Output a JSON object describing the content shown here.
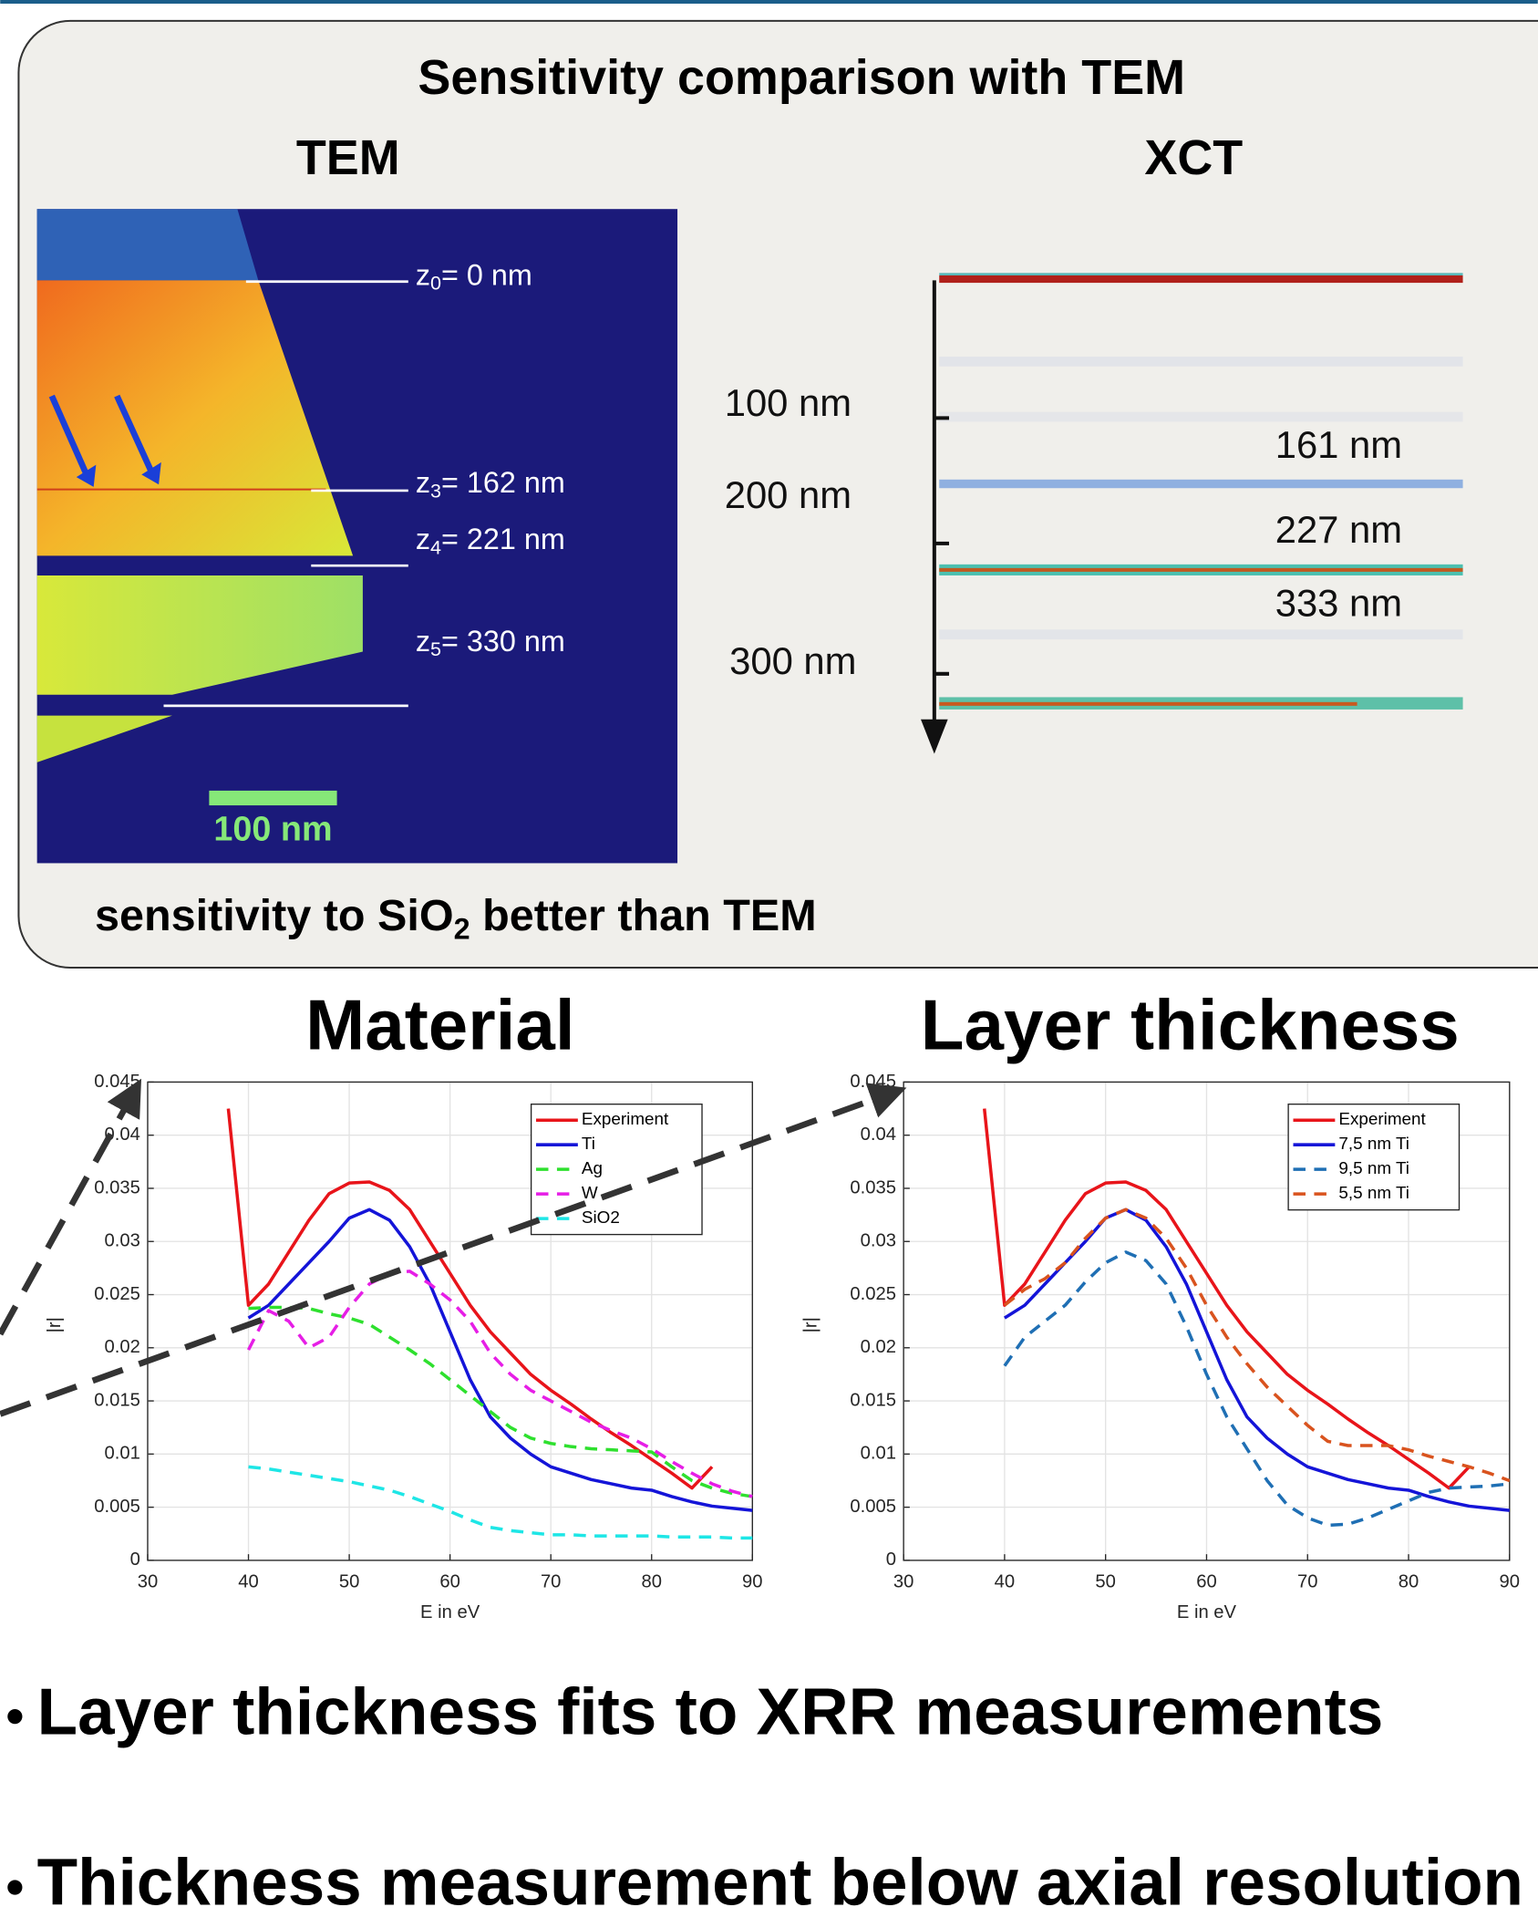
{
  "panel": {
    "title": "Sensitivity comparison with TEM",
    "tem_title": "TEM",
    "xct_title": "XCT",
    "tem_labels": [
      {
        "var": "z",
        "sub": "0",
        "rest": "= 0 nm"
      },
      {
        "var": "z",
        "sub": "3",
        "rest": "= 162 nm"
      },
      {
        "var": "z",
        "sub": "4",
        "rest": "= 221 nm"
      },
      {
        "var": "z",
        "sub": "5",
        "rest": "= 330 nm"
      }
    ],
    "scale_bar": "100 nm",
    "xct_depth_labels": [
      "100 nm",
      "200 nm",
      "300 nm"
    ],
    "xct_layer_labels": [
      "161 nm",
      "227 nm",
      "333 nm"
    ],
    "note": {
      "before": "sensitivity to SiO",
      "sub": "2",
      "after": " better than TEM"
    }
  },
  "chart_data": [
    {
      "type": "line",
      "title": "Material",
      "x_label": "E in eV",
      "y_label": "|r|",
      "xlim": [
        30,
        90
      ],
      "ylim": [
        0,
        0.045
      ],
      "xticks": [
        30,
        40,
        50,
        60,
        70,
        80,
        90
      ],
      "yticks": [
        0,
        0.005,
        0.01,
        0.015,
        0.02,
        0.025,
        0.03,
        0.035,
        0.04,
        0.045
      ],
      "grid": true,
      "legend": "upper right",
      "x": [
        38,
        40,
        42,
        44,
        46,
        48,
        50,
        52,
        54,
        56,
        58,
        60,
        62,
        64,
        66,
        68,
        70,
        72,
        74,
        76,
        78,
        80,
        82,
        84,
        86,
        88,
        90
      ],
      "series": [
        {
          "name": "Experiment",
          "color": "#e8141a",
          "style": "solid",
          "values": [
            0.0425,
            0.024,
            0.026,
            0.029,
            0.032,
            0.0345,
            0.0355,
            0.0356,
            0.0348,
            0.033,
            0.03,
            0.027,
            0.024,
            0.0215,
            0.0195,
            0.0175,
            0.016,
            0.0147,
            0.0133,
            0.012,
            0.0108,
            0.0095,
            0.0082,
            0.0068,
            0.0088,
            null,
            null
          ]
        },
        {
          "name": "Ti",
          "color": "#1414d8",
          "style": "solid",
          "values": [
            null,
            0.0228,
            0.024,
            0.026,
            0.028,
            0.03,
            0.0322,
            0.033,
            0.032,
            0.0295,
            0.026,
            0.0215,
            0.017,
            0.0135,
            0.0115,
            0.01,
            0.0088,
            0.0082,
            0.0076,
            0.0072,
            0.0068,
            0.0066,
            0.006,
            0.0055,
            0.0051,
            0.0049,
            0.0047
          ]
        },
        {
          "name": "Ag",
          "color": "#2ee02e",
          "style": "dashed",
          "values": [
            null,
            0.0237,
            0.0238,
            0.0238,
            0.0237,
            0.0232,
            0.0228,
            0.0222,
            0.021,
            0.0198,
            0.0185,
            0.017,
            0.0155,
            0.014,
            0.0125,
            0.0115,
            0.011,
            0.0107,
            0.0105,
            0.0104,
            0.0103,
            0.0102,
            0.0088,
            0.0075,
            0.0068,
            0.0063,
            0.006
          ]
        },
        {
          "name": "W",
          "color": "#e61ee6",
          "style": "dashed",
          "values": [
            null,
            0.0198,
            0.0235,
            0.0225,
            0.02,
            0.021,
            0.0238,
            0.026,
            0.027,
            0.0272,
            0.026,
            0.0245,
            0.0225,
            0.0195,
            0.0175,
            0.016,
            0.015,
            0.014,
            0.013,
            0.0122,
            0.0115,
            0.0105,
            0.0093,
            0.0082,
            0.0072,
            0.0065,
            0.006
          ]
        },
        {
          "name": "SiO2",
          "color": "#1ee6e6",
          "style": "dashed",
          "values": [
            null,
            0.0088,
            0.0086,
            0.0083,
            0.008,
            0.0077,
            0.0074,
            0.007,
            0.0066,
            0.006,
            0.0053,
            0.0046,
            0.0038,
            0.0031,
            0.0028,
            0.0026,
            0.0024,
            0.0024,
            0.0023,
            0.0023,
            0.0023,
            0.0023,
            0.0022,
            0.0022,
            0.0022,
            0.0021,
            0.0021
          ]
        }
      ]
    },
    {
      "type": "line",
      "title": "Layer thickness",
      "x_label": "E in eV",
      "y_label": "|r|",
      "xlim": [
        30,
        90
      ],
      "ylim": [
        0,
        0.045
      ],
      "xticks": [
        30,
        40,
        50,
        60,
        70,
        80,
        90
      ],
      "yticks": [
        0,
        0.005,
        0.01,
        0.015,
        0.02,
        0.025,
        0.03,
        0.035,
        0.04,
        0.045
      ],
      "grid": true,
      "legend": "upper right",
      "x": [
        38,
        40,
        42,
        44,
        46,
        48,
        50,
        52,
        54,
        56,
        58,
        60,
        62,
        64,
        66,
        68,
        70,
        72,
        74,
        76,
        78,
        80,
        82,
        84,
        86,
        88,
        90
      ],
      "series": [
        {
          "name": "Experiment",
          "color": "#e8141a",
          "style": "solid",
          "values": [
            0.0425,
            0.024,
            0.026,
            0.029,
            0.032,
            0.0345,
            0.0355,
            0.0356,
            0.0348,
            0.033,
            0.03,
            0.027,
            0.024,
            0.0215,
            0.0195,
            0.0175,
            0.016,
            0.0147,
            0.0133,
            0.012,
            0.0108,
            0.0095,
            0.0082,
            0.0068,
            0.0088,
            null,
            null
          ]
        },
        {
          "name": "7,5 nm Ti",
          "color": "#1414d8",
          "style": "solid",
          "values": [
            null,
            0.0228,
            0.024,
            0.026,
            0.028,
            0.03,
            0.0322,
            0.033,
            0.032,
            0.0295,
            0.026,
            0.0215,
            0.017,
            0.0135,
            0.0115,
            0.01,
            0.0088,
            0.0082,
            0.0076,
            0.0072,
            0.0068,
            0.0066,
            0.006,
            0.0055,
            0.0051,
            0.0049,
            0.0047
          ]
        },
        {
          "name": "9,5 nm Ti",
          "color": "#1f6fb4",
          "style": "dashed",
          "values": [
            null,
            0.0183,
            0.021,
            0.0225,
            0.024,
            0.0262,
            0.028,
            0.029,
            0.0282,
            0.026,
            0.022,
            0.0175,
            0.0135,
            0.0105,
            0.0075,
            0.0052,
            0.004,
            0.0033,
            0.0034,
            0.004,
            0.0048,
            0.0056,
            0.0064,
            0.0068,
            0.0069,
            0.007,
            0.0072
          ]
        },
        {
          "name": "5,5 nm Ti",
          "color": "#d9531e",
          "style": "dashed",
          "values": [
            null,
            0.024,
            0.0255,
            0.0265,
            0.028,
            0.0303,
            0.0322,
            0.033,
            0.0322,
            0.0303,
            0.0275,
            0.024,
            0.021,
            0.0185,
            0.0163,
            0.0145,
            0.0127,
            0.0112,
            0.0108,
            0.0108,
            0.0108,
            0.0104,
            0.0098,
            0.0093,
            0.0088,
            0.0082,
            0.0075
          ]
        }
      ]
    }
  ],
  "bullets": [
    "Layer thickness fits to XRR measurements",
    "Thickness measurement below axial resolution"
  ]
}
